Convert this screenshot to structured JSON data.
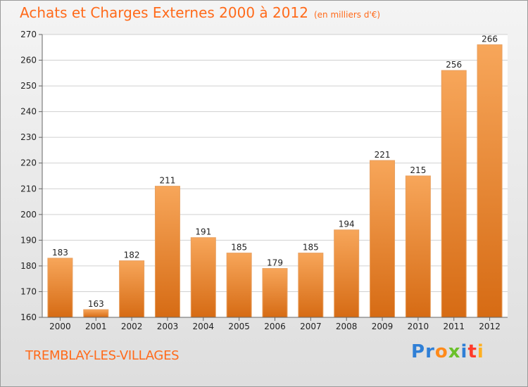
{
  "header": {
    "title": "Achats et Charges Externes 2000 à 2012",
    "subtitle": "(en milliers d'€)"
  },
  "footer": {
    "commune": "TREMBLAY-LES-VILLAGES",
    "brand": "Proxiti"
  },
  "chart_data": {
    "type": "bar",
    "title": "Achats et Charges Externes 2000 à 2012",
    "subtitle": "(en milliers d'€)",
    "categories": [
      "2000",
      "2001",
      "2002",
      "2003",
      "2004",
      "2005",
      "2006",
      "2007",
      "2008",
      "2009",
      "2010",
      "2011",
      "2012"
    ],
    "values": [
      183,
      163,
      182,
      211,
      191,
      185,
      179,
      185,
      194,
      221,
      215,
      256,
      266
    ],
    "ylim": [
      160,
      270
    ],
    "yticks": [
      160,
      170,
      180,
      190,
      200,
      210,
      220,
      230,
      240,
      250,
      260,
      270
    ],
    "grid": true,
    "bar_color_top": "#f7a65a",
    "bar_color_bottom": "#d66b14",
    "gridline_color": "#d0d0d0"
  }
}
